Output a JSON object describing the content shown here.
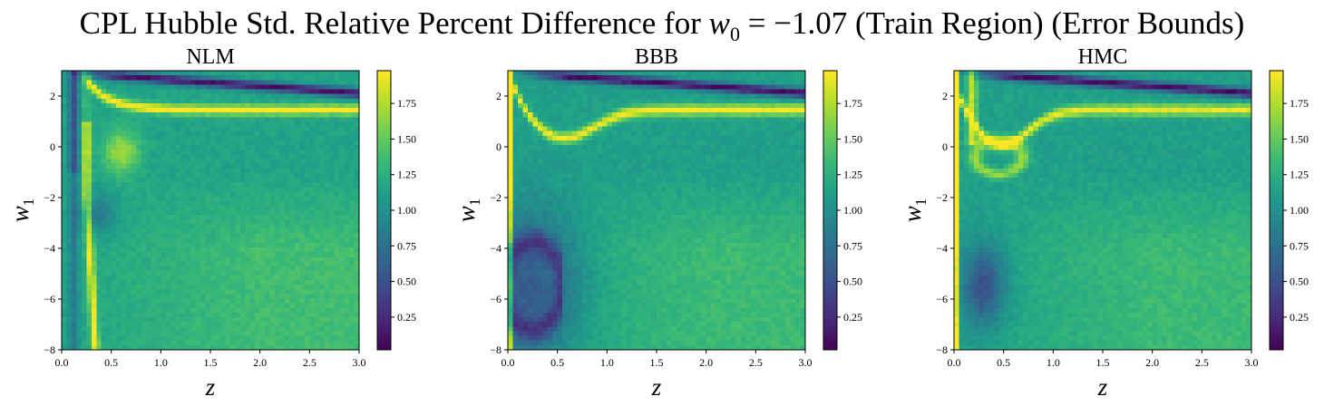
{
  "title": {
    "prefix": "CPL Hubble Std. Relative Percent Difference for ",
    "var": "w",
    "sub": "0",
    "eq": " = −1.07",
    "suffix": " (Train Region) (Error Bounds)"
  },
  "colormap": "viridis",
  "chart_data": [
    {
      "type": "heatmap",
      "title": "NLM",
      "xlabel": "z",
      "ylabel": "w",
      "ylabel_sub": "1",
      "xlim": [
        0,
        3
      ],
      "ylim": [
        -8,
        3
      ],
      "xticks": [
        "0.0",
        "0.5",
        "1.0",
        "1.5",
        "2.0",
        "2.5",
        "3.0"
      ],
      "yticks": [
        "−8",
        "−6",
        "−4",
        "−2",
        "0",
        "2"
      ],
      "colorbar": {
        "ticks": [
          "0.25",
          "0.50",
          "0.75",
          "1.00",
          "1.25",
          "1.50",
          "1.75"
        ],
        "range": [
          0.02,
          1.98
        ]
      },
      "features": {
        "background": 1.15,
        "lower_right": 1.38,
        "top_dark_band": true,
        "top_bright_band": true,
        "bright_blob": [
          0.6,
          -0.2
        ],
        "vertical_stripes": true
      }
    },
    {
      "type": "heatmap",
      "title": "BBB",
      "xlabel": "z",
      "ylabel": "w",
      "ylabel_sub": "1",
      "xlim": [
        0,
        3
      ],
      "ylim": [
        -8,
        3
      ],
      "xticks": [
        "0.0",
        "0.5",
        "1.0",
        "1.5",
        "2.0",
        "2.5",
        "3.0"
      ],
      "yticks": [
        "−8",
        "−6",
        "−4",
        "−2",
        "0",
        "2"
      ],
      "colorbar": {
        "ticks": [
          "0.25",
          "0.50",
          "0.75",
          "1.00",
          "1.25",
          "1.50",
          "1.75"
        ],
        "range": [
          0.02,
          1.98
        ]
      },
      "features": {
        "background": 1.12,
        "lower_right": 1.35,
        "top_dark_band": true,
        "bright_curve": true,
        "dark_arc": [
          0.3,
          -5.2
        ],
        "left_bright_edge": true
      }
    },
    {
      "type": "heatmap",
      "title": "HMC",
      "xlabel": "z",
      "ylabel": "w",
      "ylabel_sub": "1",
      "xlim": [
        0,
        3
      ],
      "ylim": [
        -8,
        3
      ],
      "xticks": [
        "0.0",
        "0.5",
        "1.0",
        "1.5",
        "2.0",
        "2.5",
        "3.0"
      ],
      "yticks": [
        "−8",
        "−6",
        "−4",
        "−2",
        "0",
        "2"
      ],
      "colorbar": {
        "ticks": [
          "0.25",
          "0.50",
          "0.75",
          "1.00",
          "1.25",
          "1.50",
          "1.75"
        ],
        "range": [
          0.02,
          1.98
        ]
      },
      "features": {
        "background": 1.12,
        "lower_right": 1.35,
        "top_dark_band": true,
        "bright_curve": true,
        "bright_ring": [
          0.45,
          -0.4
        ],
        "dark_blob": [
          0.3,
          -5.5
        ],
        "left_bright_edge": true
      }
    }
  ]
}
